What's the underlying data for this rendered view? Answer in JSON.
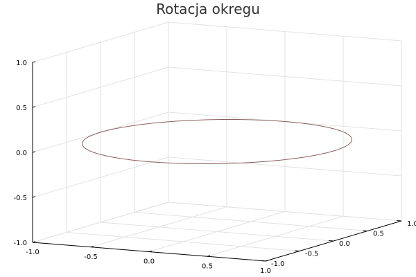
{
  "chart_data": {
    "type": "line",
    "projection": "3d",
    "title": "Rotacja okregu",
    "xlabel": "",
    "ylabel": "",
    "zlabel": "",
    "xlim": [
      -1.0,
      1.0
    ],
    "ylim": [
      -1.0,
      1.0
    ],
    "zlim": [
      -1.0,
      1.0
    ],
    "x_ticks": [
      "-1.0",
      "-0.5",
      "0.0",
      "0.5",
      "1.0"
    ],
    "y_ticks": [
      "-1.0",
      "-0.5",
      "0.0",
      "0.5",
      "1.0"
    ],
    "z_ticks": [
      "-1.0",
      "-0.5",
      "0.0",
      "0.5",
      "1.0"
    ],
    "grid": true,
    "legend": "none",
    "series": [
      {
        "color": "#8b5e5e",
        "shape": "circle",
        "center": [
          0,
          0,
          0
        ],
        "radius": 1,
        "plane": "z=0"
      }
    ]
  }
}
